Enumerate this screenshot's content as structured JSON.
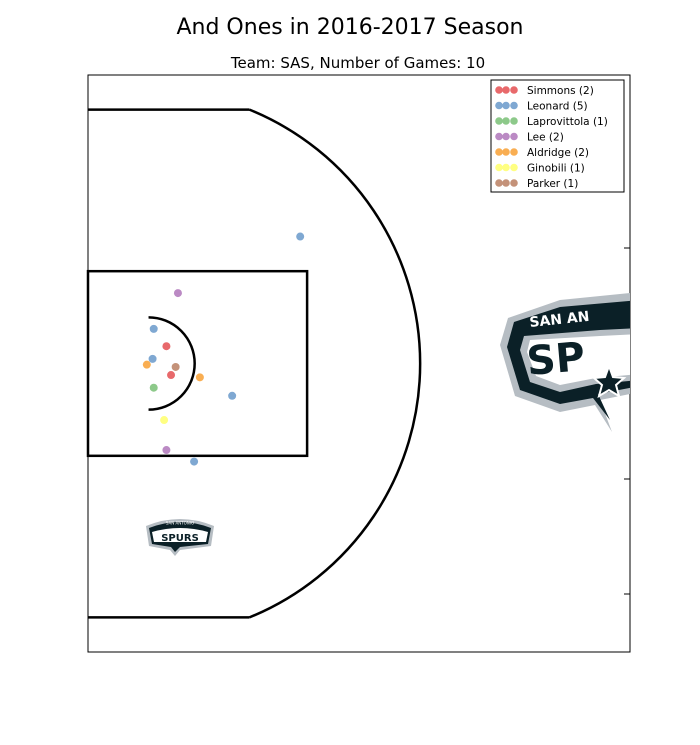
{
  "chart_data": {
    "type": "scatter",
    "title": "And Ones in 2016-2017 Season",
    "subtitle": "Team: SAS, Number of Games: 10",
    "xlabel": "",
    "ylabel": "",
    "xlim": [
      0,
      47
    ],
    "ylim": [
      0,
      50
    ],
    "grid": false,
    "legend_position": "top-right",
    "court": {
      "baseline_x": 0,
      "three_point_corner_y": [
        3,
        47
      ],
      "three_point_corner_end_x": 14,
      "three_point_radius": 23.75,
      "hoop": [
        5.25,
        25
      ],
      "paint_x": [
        0,
        19
      ],
      "paint_y": [
        17,
        33
      ],
      "restricted_radius": 4
    },
    "series": [
      {
        "name": "Simmons",
        "count": "(2)",
        "color": "#e8696b",
        "points": [
          [
            6.8,
            26.5
          ],
          [
            7.2,
            24.0
          ]
        ]
      },
      {
        "name": "Leonard",
        "count": "(5)",
        "color": "#7fa8d2",
        "points": [
          [
            18.4,
            36.0
          ],
          [
            5.7,
            28.0
          ],
          [
            5.6,
            25.4
          ],
          [
            12.5,
            22.2
          ],
          [
            9.2,
            16.5
          ]
        ]
      },
      {
        "name": "Laprovittola",
        "count": "(1)",
        "color": "#8dc98a",
        "points": [
          [
            5.7,
            22.9
          ]
        ]
      },
      {
        "name": "Lee",
        "count": "(2)",
        "color": "#bb8ac4",
        "points": [
          [
            7.8,
            31.1
          ],
          [
            6.8,
            17.5
          ]
        ]
      },
      {
        "name": "Aldridge",
        "count": "(2)",
        "color": "#f9ae52",
        "points": [
          [
            5.1,
            24.9
          ],
          [
            9.7,
            23.8
          ]
        ]
      },
      {
        "name": "Ginobili",
        "count": "(1)",
        "color": "#ffff82",
        "points": [
          [
            6.6,
            20.1
          ]
        ]
      },
      {
        "name": "Parker",
        "count": "(1)",
        "color": "#c49279",
        "points": [
          [
            7.6,
            24.7
          ]
        ]
      }
    ],
    "images": {
      "small_logo": {
        "top_text": "SAN ANTONIO",
        "main_text": "SPURS"
      },
      "large_logo": {
        "top_text": "SAN AN",
        "main_text": "SP"
      }
    }
  }
}
